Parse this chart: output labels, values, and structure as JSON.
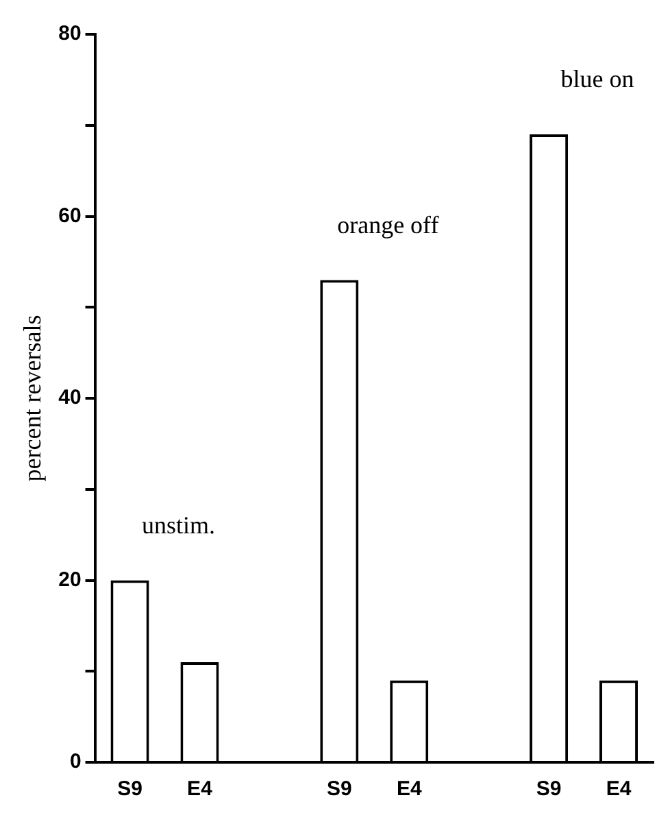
{
  "chart_data": {
    "type": "bar",
    "ylabel": "percent reversals",
    "categories": [
      "S9",
      "E4",
      null,
      "S9",
      "E4",
      null,
      "S9",
      "E4"
    ],
    "values": [
      20,
      11,
      null,
      53,
      9,
      null,
      69,
      9
    ],
    "color": "#ffffff",
    "ylim": [
      0,
      80
    ],
    "yticks": [
      0,
      {
        "value": 10,
        "label": null
      },
      20,
      {
        "value": 30,
        "label": null
      },
      40,
      {
        "value": 50,
        "label": null
      },
      60,
      {
        "value": 70,
        "label": null
      },
      80
    ],
    "grid": false,
    "legend": false,
    "annotations": [
      "unstim.",
      "orange off",
      "blue on"
    ]
  }
}
